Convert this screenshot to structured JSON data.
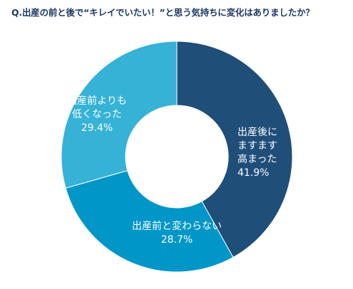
{
  "colors": {
    "title": "#1f3864",
    "label_text": "#ffffff",
    "background": "#ffffff"
  },
  "chart_data": {
    "type": "pie",
    "donut": true,
    "title": "Q.出産の前と後で“キレイでいたい！”と思う気持ちに変化はありましたか？",
    "unit": "%",
    "slices": [
      {
        "label_lines": [
          "出産後に",
          "ますます",
          "高まった"
        ],
        "value": 41.9,
        "value_text": "41.9%",
        "color": "#1f4e79"
      },
      {
        "label_lines": [
          "出産前と変わらない"
        ],
        "value": 28.7,
        "value_text": "28.7%",
        "color": "#0096c8"
      },
      {
        "label_lines": [
          "出産前よりも",
          "低くなった"
        ],
        "value": 29.4,
        "value_text": "29.4%",
        "color": "#35b2d6"
      }
    ]
  }
}
